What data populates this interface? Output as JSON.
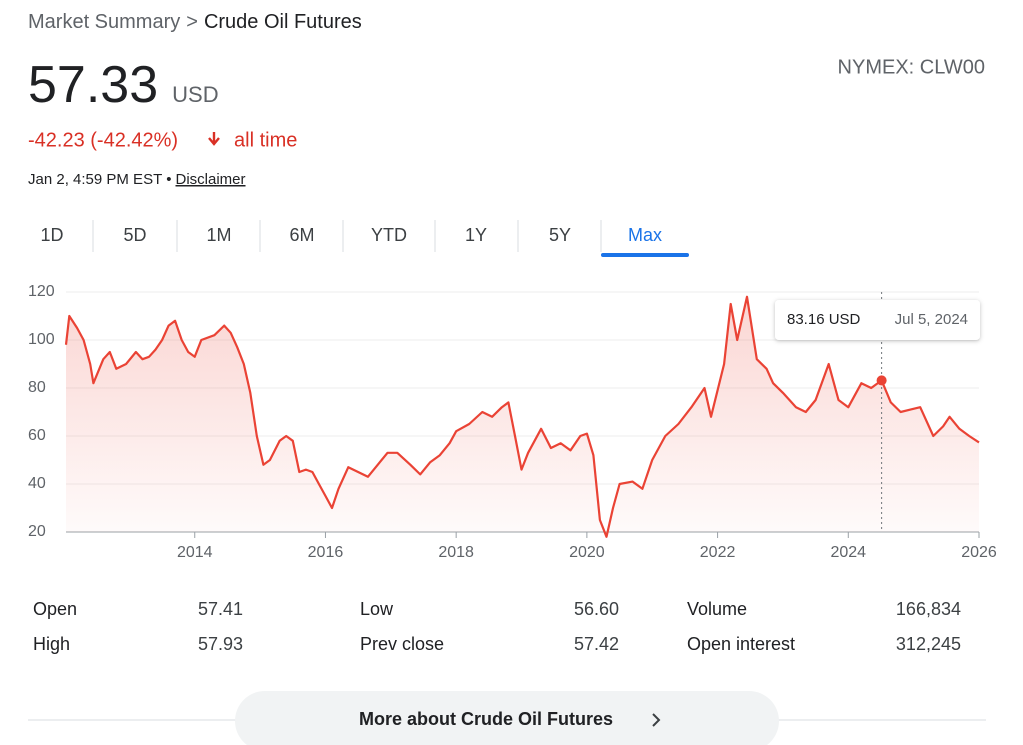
{
  "header": {
    "breadcrumb_root": "Market Summary",
    "breadcrumb_sep": ">",
    "breadcrumb_current": "Crude Oil Futures",
    "price": "57.33",
    "currency": "USD",
    "change": "-42.23 (-42.42%)",
    "change_period": "all time",
    "timestamp": "Jan 2, 4:59 PM EST",
    "timestamp_sep": "•",
    "disclaimer": "Disclaimer",
    "ticker": "NYMEX: CLW00"
  },
  "tabs": [
    "1D",
    "5D",
    "1M",
    "6M",
    "YTD",
    "1Y",
    "5Y",
    "Max"
  ],
  "active_tab": 7,
  "chart_data": {
    "type": "line",
    "color": "#ea4335",
    "x": [
      2012.03,
      2012.08,
      2012.2,
      2012.3,
      2012.4,
      2012.45,
      2012.6,
      2012.7,
      2012.8,
      2012.95,
      2013.1,
      2013.2,
      2013.3,
      2013.4,
      2013.5,
      2013.6,
      2013.7,
      2013.8,
      2013.9,
      2014.0,
      2014.1,
      2014.3,
      2014.45,
      2014.55,
      2014.65,
      2014.75,
      2014.85,
      2014.95,
      2015.05,
      2015.15,
      2015.3,
      2015.4,
      2015.5,
      2015.6,
      2015.7,
      2015.8,
      2015.9,
      2016.0,
      2016.1,
      2016.2,
      2016.35,
      2016.5,
      2016.65,
      2016.8,
      2016.95,
      2017.1,
      2017.3,
      2017.45,
      2017.6,
      2017.75,
      2017.9,
      2018.0,
      2018.2,
      2018.4,
      2018.55,
      2018.7,
      2018.8,
      2018.9,
      2019.0,
      2019.1,
      2019.3,
      2019.45,
      2019.6,
      2019.75,
      2019.9,
      2020.0,
      2020.1,
      2020.2,
      2020.3,
      2020.4,
      2020.5,
      2020.7,
      2020.85,
      2021.0,
      2021.2,
      2021.4,
      2021.6,
      2021.8,
      2021.9,
      2022.1,
      2022.2,
      2022.3,
      2022.45,
      2022.6,
      2022.75,
      2022.85,
      2023.0,
      2023.2,
      2023.35,
      2023.5,
      2023.7,
      2023.85,
      2024.0,
      2024.2,
      2024.35,
      2024.51,
      2024.65,
      2024.8,
      2024.95,
      2025.1,
      2025.3,
      2025.45,
      2025.55,
      2025.7,
      2025.85,
      2026.0
    ],
    "values": [
      98,
      110,
      105,
      100,
      90,
      82,
      92,
      95,
      88,
      90,
      95,
      92,
      93,
      96,
      100,
      106,
      108,
      100,
      95,
      93,
      100,
      102,
      106,
      103,
      97,
      90,
      78,
      60,
      48,
      50,
      58,
      60,
      58,
      45,
      46,
      45,
      40,
      35,
      30,
      38,
      47,
      45,
      43,
      48,
      53,
      53,
      48,
      44,
      49,
      52,
      57,
      62,
      65,
      70,
      68,
      72,
      74,
      60,
      46,
      53,
      63,
      55,
      57,
      54,
      60,
      61,
      52,
      25,
      18,
      30,
      40,
      41,
      38,
      50,
      60,
      65,
      72,
      80,
      68,
      90,
      115,
      100,
      118,
      92,
      88,
      82,
      78,
      72,
      70,
      75,
      90,
      75,
      72,
      82,
      80,
      83.16,
      74,
      70,
      71,
      72,
      60,
      64,
      68,
      63,
      60,
      57.33
    ],
    "xlim": [
      2012.03,
      2026
    ],
    "ylim": [
      20,
      120
    ],
    "xticks": [
      2014,
      2016,
      2018,
      2020,
      2022,
      2024,
      2026
    ],
    "yticks": [
      20,
      40,
      60,
      80,
      100,
      120
    ],
    "grid": true,
    "highlight": {
      "x": 2024.51,
      "y": 83.16,
      "label": "83.16 USD",
      "date": "Jul 5, 2024"
    }
  },
  "stats": [
    {
      "label": "Open",
      "value": "57.41"
    },
    {
      "label": "High",
      "value": "57.93"
    },
    {
      "label": "Low",
      "value": "56.60"
    },
    {
      "label": "Prev close",
      "value": "57.42"
    },
    {
      "label": "Volume",
      "value": "166,834"
    },
    {
      "label": "Open interest",
      "value": "312,245"
    }
  ],
  "more_button": "More about Crude Oil Futures"
}
